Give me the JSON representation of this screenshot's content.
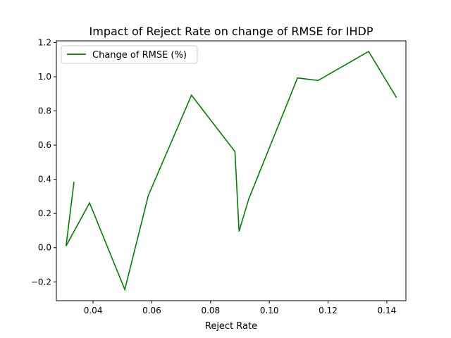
{
  "chart_data": {
    "type": "line",
    "title": "Impact of Reject Rate on change of RMSE for IHDP",
    "xlabel": "Reject Rate",
    "ylabel": "",
    "xlim": [
      0.0275,
      0.1465
    ],
    "ylim": [
      -0.31,
      1.21
    ],
    "x_ticks": [
      0.04,
      0.06,
      0.08,
      0.1,
      0.12,
      0.14
    ],
    "x_tick_labels": [
      "0.04",
      "0.06",
      "0.08",
      "0.10",
      "0.12",
      "0.14"
    ],
    "y_ticks": [
      -0.2,
      0.0,
      0.2,
      0.4,
      0.6,
      0.8,
      1.0,
      1.2
    ],
    "y_tick_labels": [
      "−0.2",
      "0.0",
      "0.2",
      "0.4",
      "0.6",
      "0.8",
      "1.0",
      "1.2"
    ],
    "grid": false,
    "legend_position": "top-left",
    "series": [
      {
        "name": "Change of RMSE (%)",
        "color": "#008000",
        "x": [
          0.0335,
          0.0308,
          0.0388,
          0.0508,
          0.0588,
          0.0735,
          0.0883,
          0.0897,
          0.093,
          0.1096,
          0.1166,
          0.1338,
          0.1433
        ],
        "y": [
          0.385,
          0.01,
          0.262,
          -0.245,
          0.305,
          0.892,
          0.562,
          0.095,
          0.285,
          0.993,
          0.978,
          1.148,
          0.878
        ]
      }
    ]
  }
}
